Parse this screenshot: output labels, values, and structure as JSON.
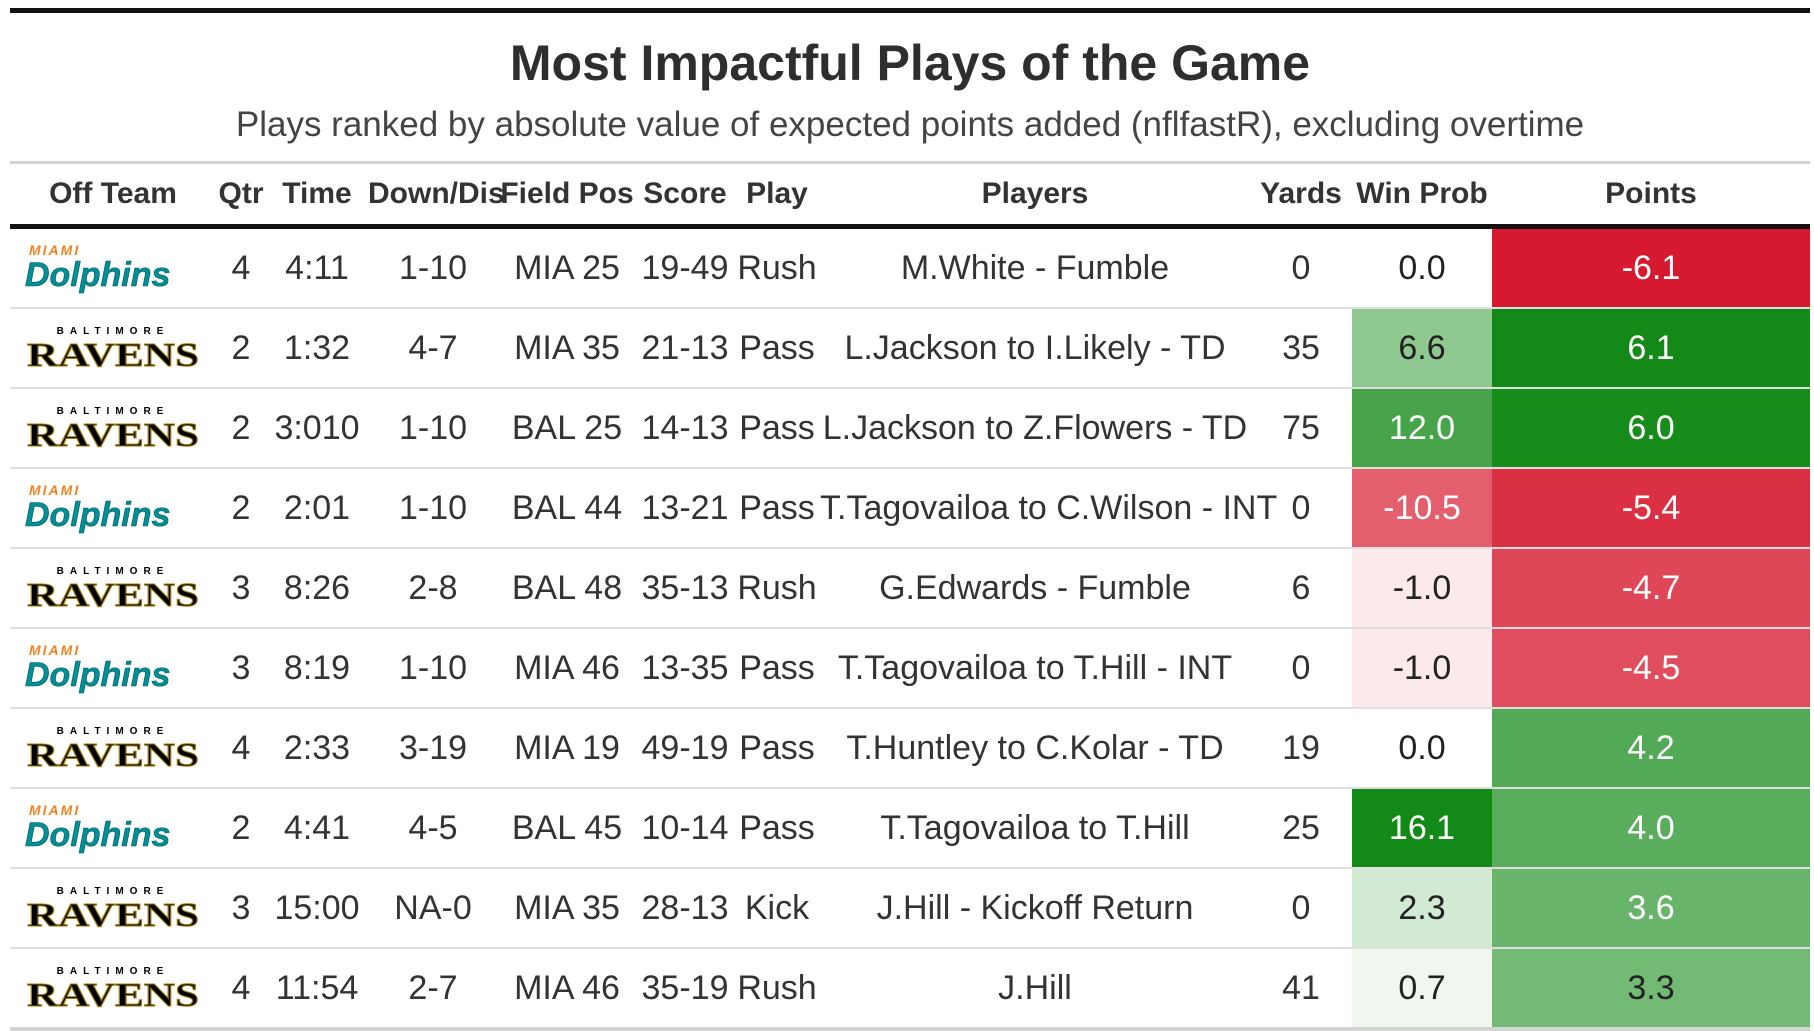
{
  "title": "Most Impactful Plays of the Game",
  "subtitle": "Plays ranked by absolute value of expected points added (nflfastR), excluding overtime",
  "columns": [
    "Off Team",
    "Qtr",
    "Time",
    "Down/Dis",
    "Field Pos",
    "Score",
    "Play",
    "Players",
    "Yards",
    "Win Prob",
    "Points"
  ],
  "logos": {
    "MIA": {
      "top": "MIAMI",
      "main": "Dolphins",
      "main_color": "#008e97",
      "top_color": "#f58220"
    },
    "BAL": {
      "top": "BALTIMORE",
      "main": "RAVENS",
      "main_color": "#000000",
      "top_color": "#000000",
      "accent_color": "#9e7c0c"
    }
  },
  "color_scale": {
    "negative": "#d7192f",
    "neutral": "#ffffff",
    "positive": "#138a17"
  },
  "chart_data": {
    "type": "table",
    "title": "Most Impactful Plays of the Game",
    "subtitle": "Plays ranked by absolute value of expected points added (nflfastR), excluding overtime",
    "columns": [
      "Off Team",
      "Qtr",
      "Time",
      "Down/Dis",
      "Field Pos",
      "Score",
      "Play",
      "Players",
      "Yards",
      "Win Prob",
      "Points"
    ],
    "rows": [
      {
        "team": "MIA",
        "qtr": "4",
        "time": "4:11",
        "down": "1-10",
        "field_pos": "MIA 25",
        "score": "19-49",
        "play": "Rush",
        "players": "M.White - Fumble",
        "yards": "0",
        "win_prob": 0.0,
        "points": -6.1
      },
      {
        "team": "BAL",
        "qtr": "2",
        "time": "1:32",
        "down": "4-7",
        "field_pos": "MIA 35",
        "score": "21-13",
        "play": "Pass",
        "players": "L.Jackson to I.Likely - TD",
        "yards": "35",
        "win_prob": 6.6,
        "points": 6.1
      },
      {
        "team": "BAL",
        "qtr": "2",
        "time": "3:010",
        "down": "1-10",
        "field_pos": "BAL 25",
        "score": "14-13",
        "play": "Pass",
        "players": "L.Jackson to Z.Flowers - TD",
        "yards": "75",
        "win_prob": 12.0,
        "points": 6.0
      },
      {
        "team": "MIA",
        "qtr": "2",
        "time": "2:01",
        "down": "1-10",
        "field_pos": "BAL 44",
        "score": "13-21",
        "play": "Pass",
        "players": "T.Tagovailoa to C.Wilson - INT",
        "yards": "0",
        "win_prob": -10.5,
        "points": -5.4
      },
      {
        "team": "BAL",
        "qtr": "3",
        "time": "8:26",
        "down": "2-8",
        "field_pos": "BAL 48",
        "score": "35-13",
        "play": "Rush",
        "players": "G.Edwards - Fumble",
        "yards": "6",
        "win_prob": -1.0,
        "points": -4.7
      },
      {
        "team": "MIA",
        "qtr": "3",
        "time": "8:19",
        "down": "1-10",
        "field_pos": "MIA 46",
        "score": "13-35",
        "play": "Pass",
        "players": "T.Tagovailoa to T.Hill - INT",
        "yards": "0",
        "win_prob": -1.0,
        "points": -4.5
      },
      {
        "team": "BAL",
        "qtr": "4",
        "time": "2:33",
        "down": "3-19",
        "field_pos": "MIA 19",
        "score": "49-19",
        "play": "Pass",
        "players": "T.Huntley to C.Kolar - TD",
        "yards": "19",
        "win_prob": 0.0,
        "points": 4.2
      },
      {
        "team": "MIA",
        "qtr": "2",
        "time": "4:41",
        "down": "4-5",
        "field_pos": "BAL 45",
        "score": "10-14",
        "play": "Pass",
        "players": "T.Tagovailoa to T.Hill",
        "yards": "25",
        "win_prob": 16.1,
        "points": 4.0
      },
      {
        "team": "BAL",
        "qtr": "3",
        "time": "15:00",
        "down": "NA-0",
        "field_pos": "MIA 35",
        "score": "28-13",
        "play": "Kick",
        "players": "J.Hill - Kickoff Return",
        "yards": "0",
        "win_prob": 2.3,
        "points": 3.6
      },
      {
        "team": "BAL",
        "qtr": "4",
        "time": "11:54",
        "down": "2-7",
        "field_pos": "MIA 46",
        "score": "35-19",
        "play": "Rush",
        "players": "J.Hill",
        "yards": "41",
        "win_prob": 0.7,
        "points": 3.3
      }
    ],
    "win_prob_range": [
      -16.1,
      16.1
    ],
    "points_range": [
      -6.1,
      6.1
    ]
  }
}
